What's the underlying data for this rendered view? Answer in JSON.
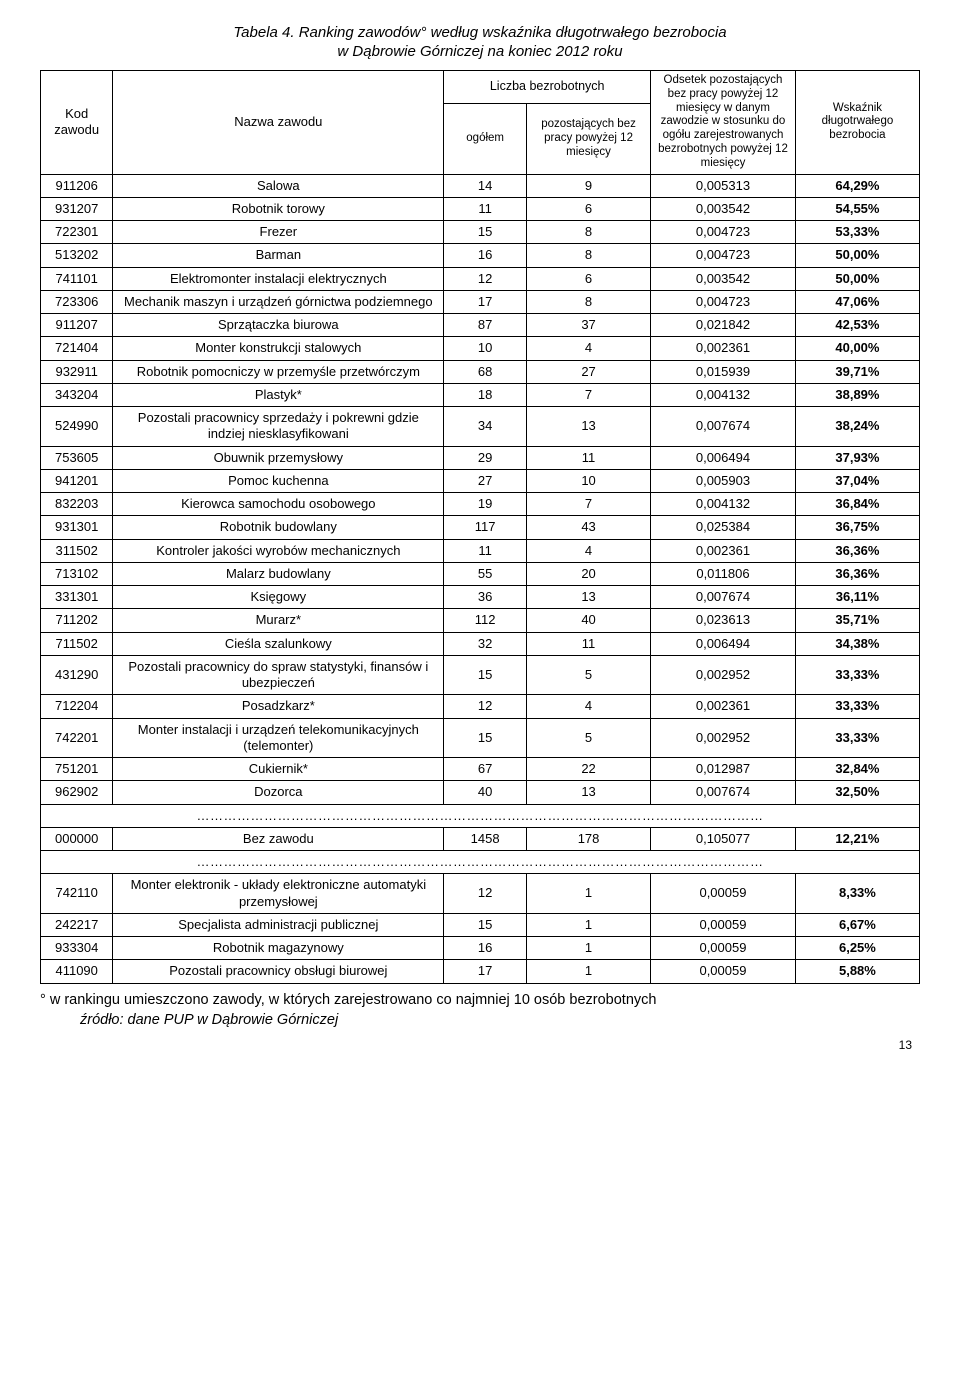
{
  "title": "Tabela 4. Ranking zawodów° według wskaźnika długotrwałego bezrobocia",
  "subtitle": "w Dąbrowie Górniczej na koniec  2012  roku",
  "headers": {
    "code": "Kod zawodu",
    "name": "Nazwa zawodu",
    "liczba_top": "Liczba bezrobotnych",
    "ogolem": "ogółem",
    "pozost": "pozostających bez pracy powyżej 12 miesięcy",
    "odsetek": "Odsetek pozostających bez pracy powyżej 12 miesięcy w danym zawodzie w stosunku do ogółu zarejestrowanych bezrobotnych powyżej 12 miesięcy",
    "wsk": "Wskaźnik długotrwałego bezrobocia"
  },
  "rows": [
    {
      "code": "911206",
      "name": "Salowa",
      "a": "14",
      "b": "9",
      "c": "0,005313",
      "d": "64,29%"
    },
    {
      "code": "931207",
      "name": "Robotnik torowy",
      "a": "11",
      "b": "6",
      "c": "0,003542",
      "d": "54,55%"
    },
    {
      "code": "722301",
      "name": "Frezer",
      "a": "15",
      "b": "8",
      "c": "0,004723",
      "d": "53,33%"
    },
    {
      "code": "513202",
      "name": "Barman",
      "a": "16",
      "b": "8",
      "c": "0,004723",
      "d": "50,00%"
    },
    {
      "code": "741101",
      "name": "Elektromonter instalacji elektrycznych",
      "a": "12",
      "b": "6",
      "c": "0,003542",
      "d": "50,00%"
    },
    {
      "code": "723306",
      "name": "Mechanik maszyn i urządzeń górnictwa podziemnego",
      "a": "17",
      "b": "8",
      "c": "0,004723",
      "d": "47,06%"
    },
    {
      "code": "911207",
      "name": "Sprzątaczka biurowa",
      "a": "87",
      "b": "37",
      "c": "0,021842",
      "d": "42,53%"
    },
    {
      "code": "721404",
      "name": "Monter konstrukcji stalowych",
      "a": "10",
      "b": "4",
      "c": "0,002361",
      "d": "40,00%"
    },
    {
      "code": "932911",
      "name": "Robotnik pomocniczy w przemyśle przetwórczym",
      "a": "68",
      "b": "27",
      "c": "0,015939",
      "d": "39,71%"
    },
    {
      "code": "343204",
      "name": "Plastyk*",
      "a": "18",
      "b": "7",
      "c": "0,004132",
      "d": "38,89%"
    },
    {
      "code": "524990",
      "name": "Pozostali pracownicy sprzedaży i pokrewni gdzie indziej niesklasyfikowani",
      "a": "34",
      "b": "13",
      "c": "0,007674",
      "d": "38,24%"
    },
    {
      "code": "753605",
      "name": "Obuwnik przemysłowy",
      "a": "29",
      "b": "11",
      "c": "0,006494",
      "d": "37,93%"
    },
    {
      "code": "941201",
      "name": "Pomoc kuchenna",
      "a": "27",
      "b": "10",
      "c": "0,005903",
      "d": "37,04%"
    },
    {
      "code": "832203",
      "name": "Kierowca samochodu osobowego",
      "a": "19",
      "b": "7",
      "c": "0,004132",
      "d": "36,84%"
    },
    {
      "code": "931301",
      "name": "Robotnik budowlany",
      "a": "117",
      "b": "43",
      "c": "0,025384",
      "d": "36,75%"
    },
    {
      "code": "311502",
      "name": "Kontroler jakości wyrobów mechanicznych",
      "a": "11",
      "b": "4",
      "c": "0,002361",
      "d": "36,36%"
    },
    {
      "code": "713102",
      "name": "Malarz budowlany",
      "a": "55",
      "b": "20",
      "c": "0,011806",
      "d": "36,36%"
    },
    {
      "code": "331301",
      "name": "Księgowy",
      "a": "36",
      "b": "13",
      "c": "0,007674",
      "d": "36,11%"
    },
    {
      "code": "711202",
      "name": "Murarz*",
      "a": "112",
      "b": "40",
      "c": "0,023613",
      "d": "35,71%"
    },
    {
      "code": "711502",
      "name": "Cieśla szalunkowy",
      "a": "32",
      "b": "11",
      "c": "0,006494",
      "d": "34,38%"
    },
    {
      "code": "431290",
      "name": "Pozostali pracownicy do spraw statystyki, finansów i ubezpieczeń",
      "a": "15",
      "b": "5",
      "c": "0,002952",
      "d": "33,33%"
    },
    {
      "code": "712204",
      "name": "Posadzkarz*",
      "a": "12",
      "b": "4",
      "c": "0,002361",
      "d": "33,33%"
    },
    {
      "code": "742201",
      "name": "Monter instalacji i urządzeń telekomunikacyjnych (telemonter)",
      "a": "15",
      "b": "5",
      "c": "0,002952",
      "d": "33,33%"
    },
    {
      "code": "751201",
      "name": "Cukiernik*",
      "a": "67",
      "b": "22",
      "c": "0,012987",
      "d": "32,84%"
    },
    {
      "code": "962902",
      "name": "Dozorca",
      "a": "40",
      "b": "13",
      "c": "0,007674",
      "d": "32,50%"
    }
  ],
  "rows2": [
    {
      "code": "000000",
      "name": "Bez zawodu",
      "a": "1458",
      "b": "178",
      "c": "0,105077",
      "d": "12,21%"
    }
  ],
  "rows3": [
    {
      "code": "742110",
      "name": "Monter elektronik - układy elektroniczne automatyki przemysłowej",
      "a": "12",
      "b": "1",
      "c": "0,00059",
      "d": "8,33%"
    },
    {
      "code": "242217",
      "name": "Specjalista administracji publicznej",
      "a": "15",
      "b": "1",
      "c": "0,00059",
      "d": "6,67%"
    },
    {
      "code": "933304",
      "name": "Robotnik magazynowy",
      "a": "16",
      "b": "1",
      "c": "0,00059",
      "d": "6,25%"
    },
    {
      "code": "411090",
      "name": "Pozostali pracownicy obsługi biurowej",
      "a": "17",
      "b": "1",
      "c": "0,00059",
      "d": "5,88%"
    }
  ],
  "dots": "………………………………………………………………………………………………………………",
  "footnote1": "° w rankingu umieszczono zawody, w których zarejestrowano co najmniej 10 osób bezrobotnych",
  "footnote2": "źródło: dane PUP w Dąbrowie Górniczej",
  "page": "13"
}
